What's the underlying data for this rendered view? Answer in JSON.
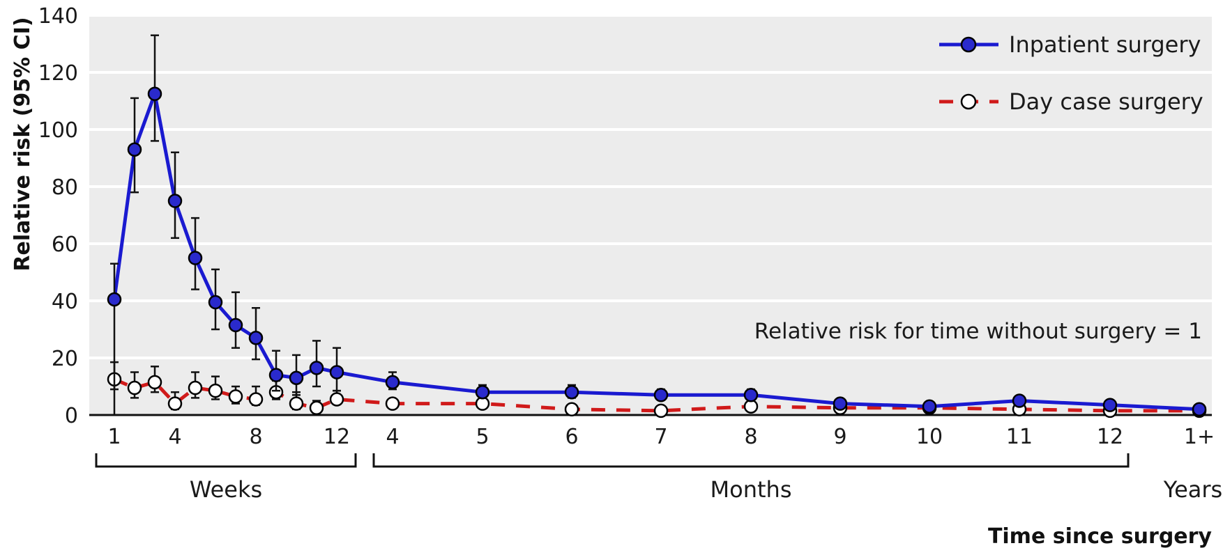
{
  "chart_data": {
    "type": "line",
    "ylabel": "Relative risk (95% CI)",
    "xlabel": "Time since surgery",
    "ylim": [
      0,
      140
    ],
    "yticks": [
      "0",
      "20",
      "40",
      "60",
      "80",
      "100",
      "120",
      "140"
    ],
    "grid": "horizontal",
    "legend_position": "top-right",
    "colors": {
      "inpatient": "#1a1ad0",
      "daycase": "#d01a1a",
      "plot_bg": "#ececec"
    },
    "x": [
      "Week 1",
      "Week 2",
      "Week 3",
      "Week 4",
      "Week 5",
      "Week 6",
      "Week 7",
      "Week 8",
      "Week 9",
      "Week 10",
      "Week 11",
      "Week 12",
      "Month 4",
      "Month 5",
      "Month 6",
      "Month 7",
      "Month 8",
      "Month 9",
      "Month 10",
      "Month 11",
      "Month 12",
      "Year 1+"
    ],
    "x_tick_labels": [
      {
        "index": 0,
        "label": "1"
      },
      {
        "index": 3,
        "label": "4"
      },
      {
        "index": 7,
        "label": "8"
      },
      {
        "index": 11,
        "label": "12"
      },
      {
        "index": 12,
        "label": "4"
      },
      {
        "index": 13,
        "label": "5"
      },
      {
        "index": 14,
        "label": "6"
      },
      {
        "index": 15,
        "label": "7"
      },
      {
        "index": 16,
        "label": "8"
      },
      {
        "index": 17,
        "label": "9"
      },
      {
        "index": 18,
        "label": "10"
      },
      {
        "index": 19,
        "label": "11"
      },
      {
        "index": 20,
        "label": "12"
      },
      {
        "index": 21,
        "label": "1+"
      }
    ],
    "groups": [
      {
        "label": "Weeks",
        "from": 0,
        "to": 11,
        "bracket": true
      },
      {
        "label": "Months",
        "from": 12,
        "to": 20,
        "bracket": true
      },
      {
        "label": "Years",
        "from": 21,
        "to": 21,
        "bracket": false
      }
    ],
    "annotation": "Relative risk for time without surgery = 1",
    "series": [
      {
        "name": "Inpatient surgery",
        "style": "solid",
        "values": [
          40.5,
          93,
          112.5,
          75,
          55,
          39.5,
          31.5,
          27,
          14,
          13,
          16.5,
          15,
          11.5,
          8,
          8,
          7,
          7,
          4,
          3,
          5,
          3.5,
          2
        ],
        "ci_low": [
          0,
          78,
          96,
          62,
          44,
          30,
          23.5,
          19.5,
          8.5,
          7,
          10,
          8.5,
          9,
          6,
          6,
          5.5,
          5.5,
          3,
          2.5,
          4,
          2.5,
          1.5
        ],
        "ci_high": [
          53,
          111,
          133,
          92,
          69,
          51,
          43,
          37.5,
          22.5,
          21,
          26,
          23.5,
          15,
          10.5,
          10.5,
          9,
          9,
          5,
          4,
          6.5,
          4.5,
          2.5
        ]
      },
      {
        "name": "Day case surgery",
        "style": "dashed",
        "values": [
          12.5,
          9.5,
          11.5,
          4,
          9.5,
          8.5,
          6.5,
          5.5,
          8,
          4,
          2.5,
          5.5,
          4,
          4,
          2,
          1.5,
          3,
          2.5,
          2.5,
          2,
          1.5,
          1.5
        ],
        "ci_low": [
          9,
          6,
          8,
          2,
          6,
          5.5,
          4,
          3.5,
          5.5,
          2,
          1,
          4,
          3,
          3,
          1.5,
          1,
          2,
          2,
          2,
          1.5,
          1,
          1
        ],
        "ci_high": [
          18.5,
          15,
          17,
          8,
          15,
          13.5,
          10,
          10,
          12,
          8,
          5,
          8.5,
          5.5,
          5.5,
          3,
          2,
          4,
          3,
          3,
          3,
          2,
          2
        ]
      }
    ]
  }
}
